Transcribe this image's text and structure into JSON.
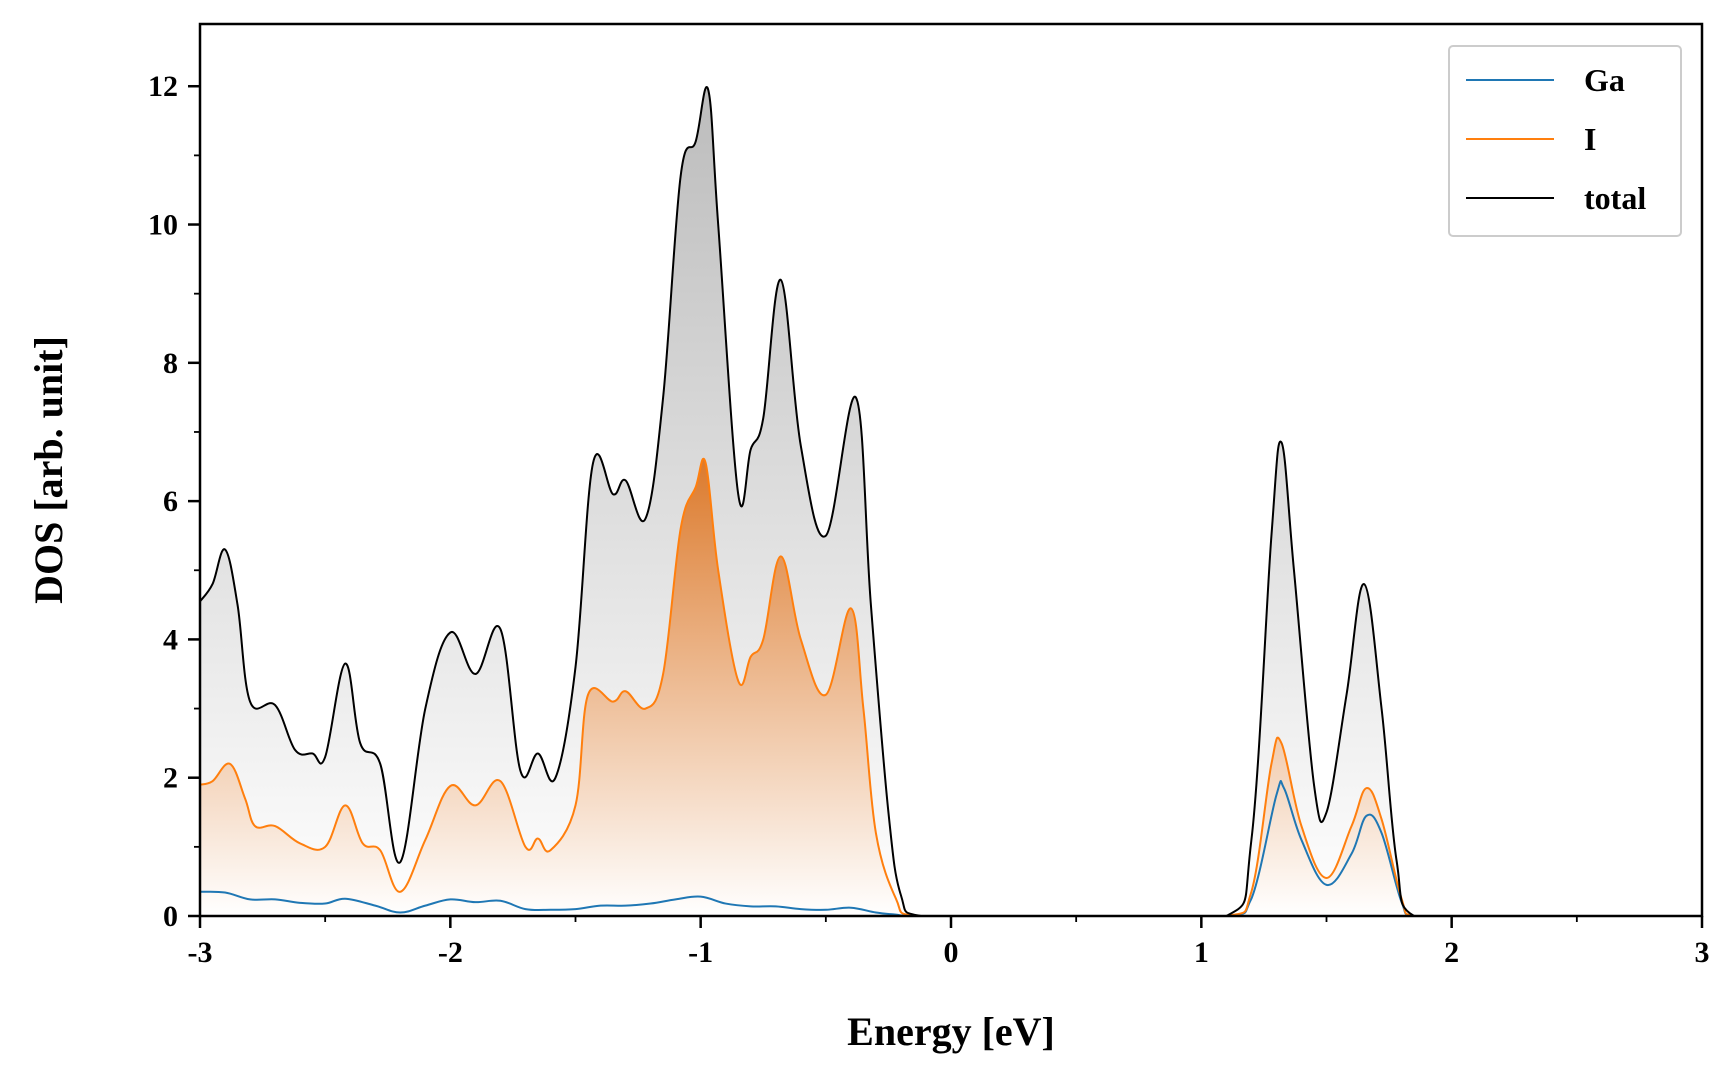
{
  "chart_data": {
    "type": "area",
    "xlabel": "Energy [eV]",
    "ylabel": "DOS [arb. unit]",
    "xlim": [
      -3,
      3
    ],
    "ylim": [
      0,
      12.9
    ],
    "xticks": [
      -3,
      -2,
      -1,
      0,
      1,
      2,
      3
    ],
    "xtick_labels": [
      "-3",
      "-2",
      "-1",
      "0",
      "1",
      "2",
      "3"
    ],
    "yticks": [
      0,
      2,
      4,
      6,
      8,
      10,
      12
    ],
    "ytick_labels": [
      "0",
      "2",
      "4",
      "6",
      "8",
      "10",
      "12"
    ],
    "grid": false,
    "legend_position": "top-right",
    "series": [
      {
        "name": "Ga",
        "color": "#1f77b4",
        "fill": false,
        "points": [
          [
            -3,
            0.35
          ],
          [
            -2.9,
            0.34
          ],
          [
            -2.8,
            0.24
          ],
          [
            -2.7,
            0.24
          ],
          [
            -2.6,
            0.19
          ],
          [
            -2.5,
            0.18
          ],
          [
            -2.42,
            0.25
          ],
          [
            -2.3,
            0.15
          ],
          [
            -2.2,
            0.05
          ],
          [
            -2.1,
            0.15
          ],
          [
            -2.0,
            0.24
          ],
          [
            -1.9,
            0.2
          ],
          [
            -1.8,
            0.22
          ],
          [
            -1.7,
            0.1
          ],
          [
            -1.6,
            0.09
          ],
          [
            -1.5,
            0.1
          ],
          [
            -1.4,
            0.15
          ],
          [
            -1.3,
            0.15
          ],
          [
            -1.2,
            0.18
          ],
          [
            -1.1,
            0.24
          ],
          [
            -1.0,
            0.28
          ],
          [
            -0.9,
            0.18
          ],
          [
            -0.8,
            0.14
          ],
          [
            -0.7,
            0.14
          ],
          [
            -0.6,
            0.1
          ],
          [
            -0.5,
            0.09
          ],
          [
            -0.4,
            0.12
          ],
          [
            -0.3,
            0.05
          ],
          [
            -0.22,
            0.02
          ],
          [
            -0.15,
            0.0
          ],
          [
            1.1,
            0.0
          ],
          [
            1.2,
            0.25
          ],
          [
            1.3,
            1.75
          ],
          [
            1.33,
            1.85
          ],
          [
            1.4,
            1.1
          ],
          [
            1.5,
            0.45
          ],
          [
            1.6,
            0.9
          ],
          [
            1.66,
            1.45
          ],
          [
            1.72,
            1.2
          ],
          [
            1.8,
            0.2
          ],
          [
            1.85,
            0.0
          ],
          [
            3,
            0.0
          ]
        ]
      },
      {
        "name": "I",
        "color": "#ff7f0e",
        "fill": true,
        "points": [
          [
            -3,
            1.9
          ],
          [
            -2.95,
            1.95
          ],
          [
            -2.88,
            2.2
          ],
          [
            -2.82,
            1.7
          ],
          [
            -2.78,
            1.3
          ],
          [
            -2.7,
            1.3
          ],
          [
            -2.6,
            1.05
          ],
          [
            -2.5,
            1.0
          ],
          [
            -2.42,
            1.6
          ],
          [
            -2.35,
            1.05
          ],
          [
            -2.28,
            0.95
          ],
          [
            -2.2,
            0.35
          ],
          [
            -2.1,
            1.1
          ],
          [
            -2.0,
            1.88
          ],
          [
            -1.9,
            1.6
          ],
          [
            -1.8,
            1.95
          ],
          [
            -1.7,
            1.0
          ],
          [
            -1.65,
            1.12
          ],
          [
            -1.6,
            0.95
          ],
          [
            -1.5,
            1.6
          ],
          [
            -1.45,
            3.2
          ],
          [
            -1.35,
            3.1
          ],
          [
            -1.3,
            3.25
          ],
          [
            -1.22,
            3.0
          ],
          [
            -1.15,
            3.5
          ],
          [
            -1.08,
            5.6
          ],
          [
            -1.02,
            6.2
          ],
          [
            -0.98,
            6.55
          ],
          [
            -0.93,
            5.0
          ],
          [
            -0.85,
            3.4
          ],
          [
            -0.8,
            3.75
          ],
          [
            -0.75,
            4.0
          ],
          [
            -0.68,
            5.2
          ],
          [
            -0.6,
            4.0
          ],
          [
            -0.5,
            3.2
          ],
          [
            -0.4,
            4.45
          ],
          [
            -0.35,
            3.0
          ],
          [
            -0.3,
            1.2
          ],
          [
            -0.22,
            0.25
          ],
          [
            -0.15,
            0.0
          ],
          [
            1.1,
            0.0
          ],
          [
            1.2,
            0.35
          ],
          [
            1.28,
            2.2
          ],
          [
            1.32,
            2.5
          ],
          [
            1.4,
            1.3
          ],
          [
            1.5,
            0.55
          ],
          [
            1.6,
            1.3
          ],
          [
            1.66,
            1.85
          ],
          [
            1.72,
            1.4
          ],
          [
            1.8,
            0.25
          ],
          [
            1.85,
            0.0
          ],
          [
            3,
            0.0
          ]
        ]
      },
      {
        "name": "total",
        "color": "#000000",
        "fill": true,
        "points": [
          [
            -3,
            4.55
          ],
          [
            -2.95,
            4.8
          ],
          [
            -2.9,
            5.3
          ],
          [
            -2.85,
            4.5
          ],
          [
            -2.8,
            3.1
          ],
          [
            -2.7,
            3.05
          ],
          [
            -2.62,
            2.4
          ],
          [
            -2.55,
            2.35
          ],
          [
            -2.5,
            2.3
          ],
          [
            -2.42,
            3.65
          ],
          [
            -2.36,
            2.5
          ],
          [
            -2.28,
            2.2
          ],
          [
            -2.2,
            0.78
          ],
          [
            -2.1,
            3.0
          ],
          [
            -2.0,
            4.1
          ],
          [
            -1.9,
            3.5
          ],
          [
            -1.8,
            4.15
          ],
          [
            -1.72,
            2.1
          ],
          [
            -1.65,
            2.35
          ],
          [
            -1.58,
            2.0
          ],
          [
            -1.5,
            3.6
          ],
          [
            -1.43,
            6.55
          ],
          [
            -1.35,
            6.1
          ],
          [
            -1.3,
            6.3
          ],
          [
            -1.22,
            5.75
          ],
          [
            -1.15,
            7.5
          ],
          [
            -1.08,
            10.7
          ],
          [
            -1.02,
            11.2
          ],
          [
            -0.97,
            11.95
          ],
          [
            -0.93,
            10.0
          ],
          [
            -0.85,
            6.1
          ],
          [
            -0.8,
            6.75
          ],
          [
            -0.75,
            7.2
          ],
          [
            -0.68,
            9.2
          ],
          [
            -0.6,
            6.8
          ],
          [
            -0.5,
            5.5
          ],
          [
            -0.38,
            7.5
          ],
          [
            -0.32,
            4.5
          ],
          [
            -0.25,
            1.5
          ],
          [
            -0.2,
            0.3
          ],
          [
            -0.12,
            0.0
          ],
          [
            1.1,
            0.0
          ],
          [
            1.2,
            1.1
          ],
          [
            1.28,
            5.5
          ],
          [
            1.32,
            6.85
          ],
          [
            1.37,
            5.0
          ],
          [
            1.45,
            1.9
          ],
          [
            1.5,
            1.5
          ],
          [
            1.58,
            3.2
          ],
          [
            1.65,
            4.8
          ],
          [
            1.72,
            3.0
          ],
          [
            1.78,
            0.8
          ],
          [
            1.85,
            0.0
          ],
          [
            3,
            0.0
          ]
        ]
      }
    ]
  }
}
